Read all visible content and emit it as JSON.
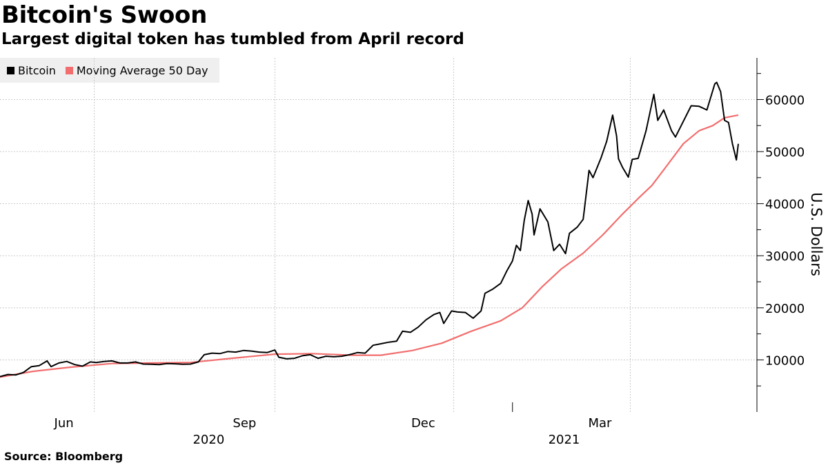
{
  "title": "Bitcoin's Swoon",
  "subtitle": "Largest digital token has tumbled from April record",
  "source": "Source: Bloomberg",
  "colors": {
    "bitcoin": "#000000",
    "ma50": "#f26d6d",
    "grid": "#c8c8c8"
  },
  "chart_data": {
    "type": "line",
    "title": "Bitcoin's Swoon",
    "subtitle": "Largest digital token has tumbled from April record",
    "ylabel": "U.S. Dollars",
    "ylim": [
      0,
      68000
    ],
    "yticks": [
      10000,
      20000,
      30000,
      40000,
      50000,
      60000
    ],
    "xlim": [
      "2020-04-14",
      "2021-04-25"
    ],
    "xticks": [
      {
        "date": "2020-06-01",
        "label": "Jun"
      },
      {
        "date": "2020-09-01",
        "label": "Sep"
      },
      {
        "date": "2020-12-01",
        "label": "Dec"
      },
      {
        "date": "2021-03-01",
        "label": "Mar"
      }
    ],
    "gridlines_x": [
      "2020-06-01",
      "2020-09-01",
      "2020-12-01",
      "2021-03-01"
    ],
    "year_labels": [
      {
        "date": "2020-09-01",
        "label": "2020"
      },
      {
        "date": "2021-03-01",
        "label": "2021"
      }
    ],
    "year_separators": [
      "2020-12-31"
    ],
    "grid": true,
    "legend_position": "top-left",
    "series": [
      {
        "name": "Bitcoin",
        "color": "#000000",
        "points": [
          [
            "2020-04-14",
            6800
          ],
          [
            "2020-04-18",
            7200
          ],
          [
            "2020-04-22",
            7100
          ],
          [
            "2020-04-26",
            7600
          ],
          [
            "2020-04-30",
            8700
          ],
          [
            "2020-05-04",
            8900
          ],
          [
            "2020-05-08",
            9800
          ],
          [
            "2020-05-10",
            8700
          ],
          [
            "2020-05-14",
            9400
          ],
          [
            "2020-05-18",
            9700
          ],
          [
            "2020-05-22",
            9100
          ],
          [
            "2020-05-26",
            8800
          ],
          [
            "2020-05-30",
            9600
          ],
          [
            "2020-06-02",
            9500
          ],
          [
            "2020-06-06",
            9700
          ],
          [
            "2020-06-10",
            9800
          ],
          [
            "2020-06-14",
            9400
          ],
          [
            "2020-06-18",
            9400
          ],
          [
            "2020-06-22",
            9600
          ],
          [
            "2020-06-26",
            9200
          ],
          [
            "2020-06-30",
            9150
          ],
          [
            "2020-07-04",
            9100
          ],
          [
            "2020-07-08",
            9300
          ],
          [
            "2020-07-12",
            9250
          ],
          [
            "2020-07-16",
            9150
          ],
          [
            "2020-07-20",
            9200
          ],
          [
            "2020-07-24",
            9600
          ],
          [
            "2020-07-27",
            11000
          ],
          [
            "2020-07-31",
            11300
          ],
          [
            "2020-08-04",
            11200
          ],
          [
            "2020-08-08",
            11600
          ],
          [
            "2020-08-12",
            11500
          ],
          [
            "2020-08-16",
            11800
          ],
          [
            "2020-08-20",
            11700
          ],
          [
            "2020-08-24",
            11500
          ],
          [
            "2020-08-28",
            11400
          ],
          [
            "2020-09-01",
            11900
          ],
          [
            "2020-09-03",
            10500
          ],
          [
            "2020-09-07",
            10200
          ],
          [
            "2020-09-11",
            10300
          ],
          [
            "2020-09-15",
            10800
          ],
          [
            "2020-09-19",
            11000
          ],
          [
            "2020-09-23",
            10300
          ],
          [
            "2020-09-27",
            10700
          ],
          [
            "2020-10-01",
            10600
          ],
          [
            "2020-10-05",
            10700
          ],
          [
            "2020-10-09",
            11000
          ],
          [
            "2020-10-13",
            11400
          ],
          [
            "2020-10-17",
            11300
          ],
          [
            "2020-10-21",
            12800
          ],
          [
            "2020-10-25",
            13100
          ],
          [
            "2020-10-29",
            13400
          ],
          [
            "2020-11-02",
            13600
          ],
          [
            "2020-11-05",
            15500
          ],
          [
            "2020-11-09",
            15300
          ],
          [
            "2020-11-13",
            16300
          ],
          [
            "2020-11-17",
            17700
          ],
          [
            "2020-11-21",
            18700
          ],
          [
            "2020-11-24",
            19100
          ],
          [
            "2020-11-26",
            17000
          ],
          [
            "2020-11-30",
            19400
          ],
          [
            "2020-12-03",
            19200
          ],
          [
            "2020-12-07",
            19100
          ],
          [
            "2020-12-11",
            18000
          ],
          [
            "2020-12-15",
            19400
          ],
          [
            "2020-12-17",
            22800
          ],
          [
            "2020-12-21",
            23600
          ],
          [
            "2020-12-25",
            24700
          ],
          [
            "2020-12-28",
            27000
          ],
          [
            "2020-12-31",
            29000
          ],
          [
            "2021-01-02",
            32000
          ],
          [
            "2021-01-04",
            31000
          ],
          [
            "2021-01-06",
            36800
          ],
          [
            "2021-01-08",
            40600
          ],
          [
            "2021-01-10",
            38000
          ],
          [
            "2021-01-11",
            34000
          ],
          [
            "2021-01-14",
            39000
          ],
          [
            "2021-01-18",
            36500
          ],
          [
            "2021-01-21",
            31000
          ],
          [
            "2021-01-24",
            32200
          ],
          [
            "2021-01-27",
            30400
          ],
          [
            "2021-01-29",
            34300
          ],
          [
            "2021-02-02",
            35500
          ],
          [
            "2021-02-05",
            37000
          ],
          [
            "2021-02-08",
            46400
          ],
          [
            "2021-02-10",
            45000
          ],
          [
            "2021-02-14",
            48700
          ],
          [
            "2021-02-17",
            52000
          ],
          [
            "2021-02-20",
            57000
          ],
          [
            "2021-02-22",
            53000
          ],
          [
            "2021-02-23",
            48600
          ],
          [
            "2021-02-25",
            47000
          ],
          [
            "2021-02-28",
            45100
          ],
          [
            "2021-03-02",
            48500
          ],
          [
            "2021-03-05",
            48700
          ],
          [
            "2021-03-09",
            54000
          ],
          [
            "2021-03-13",
            61000
          ],
          [
            "2021-03-15",
            56000
          ],
          [
            "2021-03-18",
            58000
          ],
          [
            "2021-03-22",
            54000
          ],
          [
            "2021-03-24",
            52800
          ],
          [
            "2021-03-28",
            55800
          ],
          [
            "2021-04-01",
            58800
          ],
          [
            "2021-04-05",
            58700
          ],
          [
            "2021-04-09",
            58000
          ],
          [
            "2021-04-13",
            63000
          ],
          [
            "2021-04-14",
            63300
          ],
          [
            "2021-04-16",
            61500
          ],
          [
            "2021-04-18",
            56000
          ],
          [
            "2021-04-20",
            55600
          ],
          [
            "2021-04-22",
            51500
          ],
          [
            "2021-04-23",
            50000
          ],
          [
            "2021-04-24",
            48400
          ],
          [
            "2021-04-25",
            51500
          ]
        ]
      },
      {
        "name": "Moving Average 50 Day",
        "color": "#f26d6d",
        "points": [
          [
            "2020-04-14",
            6700
          ],
          [
            "2020-05-01",
            7800
          ],
          [
            "2020-05-20",
            8600
          ],
          [
            "2020-06-10",
            9300
          ],
          [
            "2020-07-01",
            9400
          ],
          [
            "2020-07-20",
            9500
          ],
          [
            "2020-08-10",
            10300
          ],
          [
            "2020-09-01",
            11100
          ],
          [
            "2020-09-20",
            11200
          ],
          [
            "2020-10-10",
            10900
          ],
          [
            "2020-10-25",
            10900
          ],
          [
            "2020-11-10",
            11800
          ],
          [
            "2020-11-25",
            13200
          ],
          [
            "2020-12-10",
            15500
          ],
          [
            "2020-12-25",
            17500
          ],
          [
            "2021-01-05",
            20000
          ],
          [
            "2021-01-15",
            24000
          ],
          [
            "2021-01-25",
            27500
          ],
          [
            "2021-02-05",
            30500
          ],
          [
            "2021-02-15",
            34000
          ],
          [
            "2021-02-25",
            38000
          ],
          [
            "2021-03-05",
            41000
          ],
          [
            "2021-03-12",
            43500
          ],
          [
            "2021-03-20",
            47500
          ],
          [
            "2021-03-28",
            51500
          ],
          [
            "2021-04-05",
            54000
          ],
          [
            "2021-04-12",
            55000
          ],
          [
            "2021-04-18",
            56500
          ],
          [
            "2021-04-25",
            57000
          ]
        ]
      }
    ]
  },
  "legend": [
    {
      "label": "Bitcoin",
      "color": "#000000"
    },
    {
      "label": "Moving Average 50 Day",
      "color": "#f26d6d"
    }
  ]
}
